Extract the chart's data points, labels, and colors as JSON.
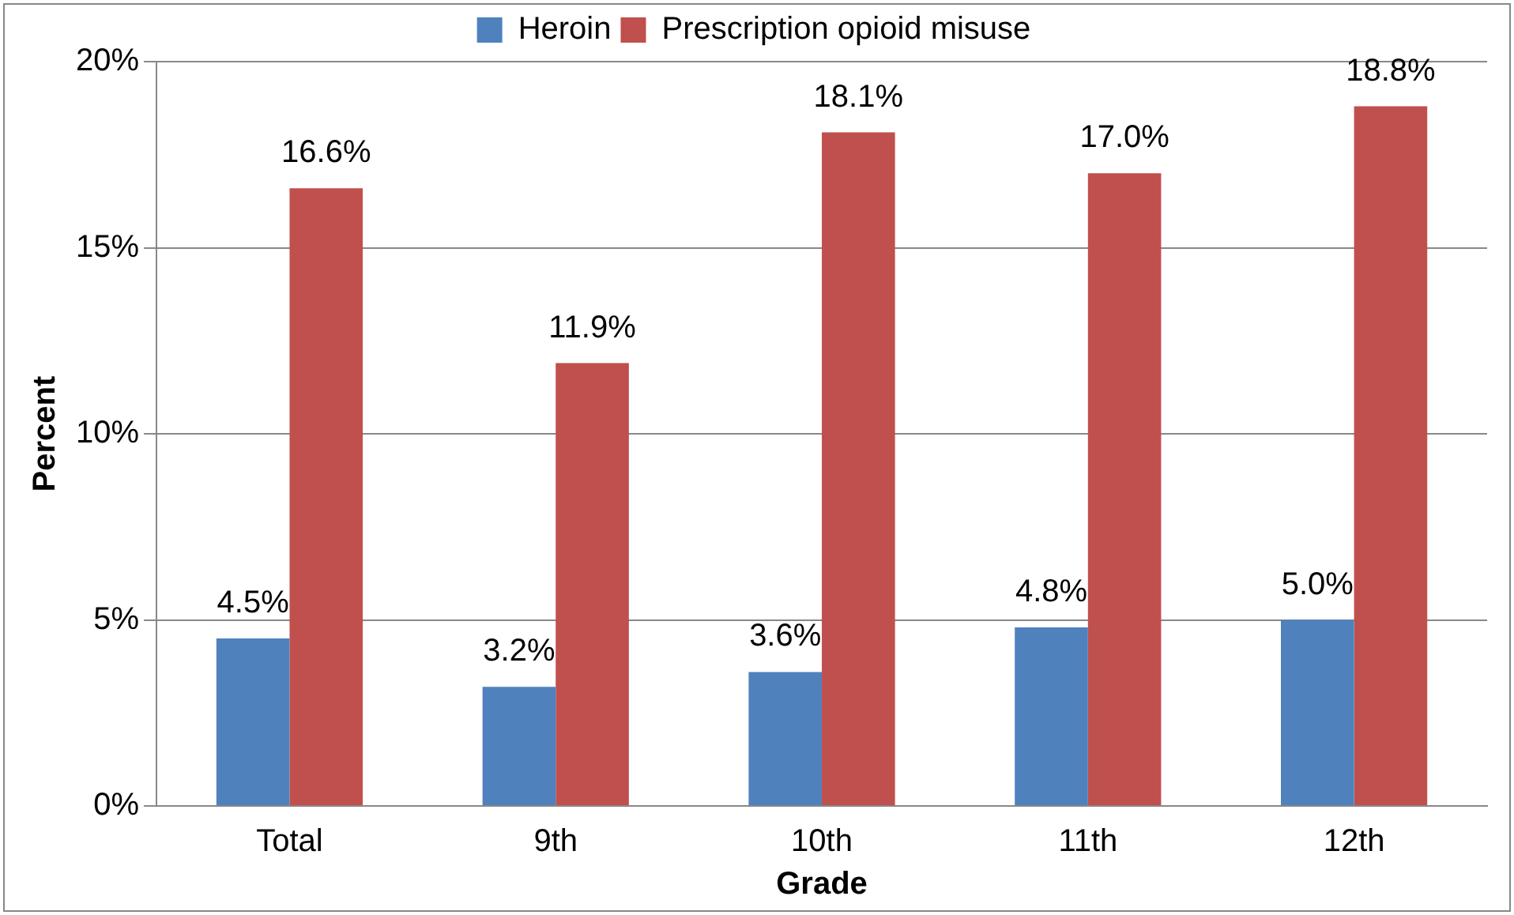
{
  "chart_data": {
    "type": "bar",
    "xlabel": "Grade",
    "ylabel": "Percent",
    "categories": [
      "Total",
      "9th",
      "10th",
      "11th",
      "12th"
    ],
    "series": [
      {
        "name": "Heroin",
        "color": "#4f81bd",
        "values": [
          4.5,
          3.2,
          3.6,
          4.8,
          5.0
        ],
        "value_labels": [
          "4.5%",
          "3.2%",
          "3.6%",
          "4.8%",
          "5.0%"
        ]
      },
      {
        "name": "Prescription opioid misuse",
        "color": "#c0504d",
        "values": [
          16.6,
          11.9,
          18.1,
          17.0,
          18.8
        ],
        "value_labels": [
          "16.6%",
          "11.9%",
          "18.1%",
          "17.0%",
          "18.8%"
        ]
      }
    ],
    "ylim": [
      0,
      20
    ],
    "yticks": [
      {
        "value": 0,
        "label": "0%"
      },
      {
        "value": 5,
        "label": "5%"
      },
      {
        "value": 10,
        "label": "10%"
      },
      {
        "value": 15,
        "label": "15%"
      },
      {
        "value": 20,
        "label": "20%"
      }
    ],
    "grid": "y",
    "legend": "top"
  }
}
